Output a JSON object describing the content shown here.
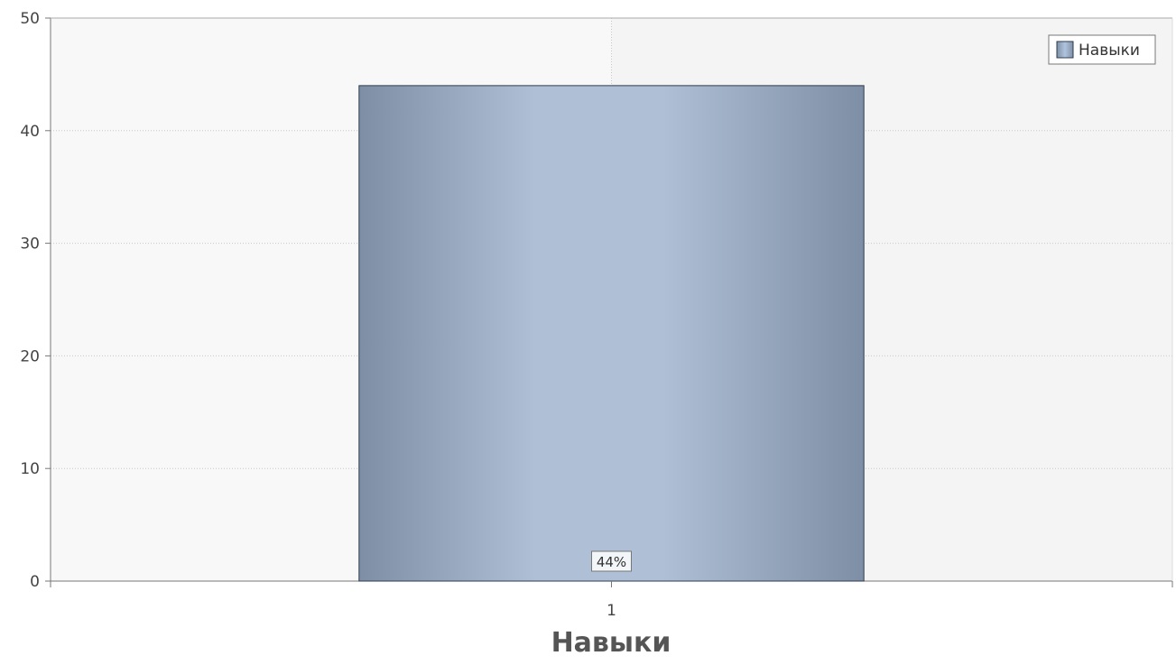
{
  "chart_data": {
    "type": "bar",
    "categories": [
      "1"
    ],
    "series": [
      {
        "name": "Навыки",
        "values": [
          44
        ],
        "data_labels": [
          "44%"
        ],
        "color": "#B0C4DE",
        "edge_color": "#7E8FA5",
        "border_color": "#2F3B4C"
      }
    ],
    "xlabel": "Навыки",
    "ylabel": "",
    "ylim": [
      0,
      50
    ],
    "yticks": [
      0,
      10,
      20,
      30,
      40,
      50
    ],
    "grid": true,
    "legend": "top-right",
    "legend_label": "Навыки",
    "plot_band_colors": [
      "#F8F8F8",
      "#F4F4F4"
    ]
  }
}
